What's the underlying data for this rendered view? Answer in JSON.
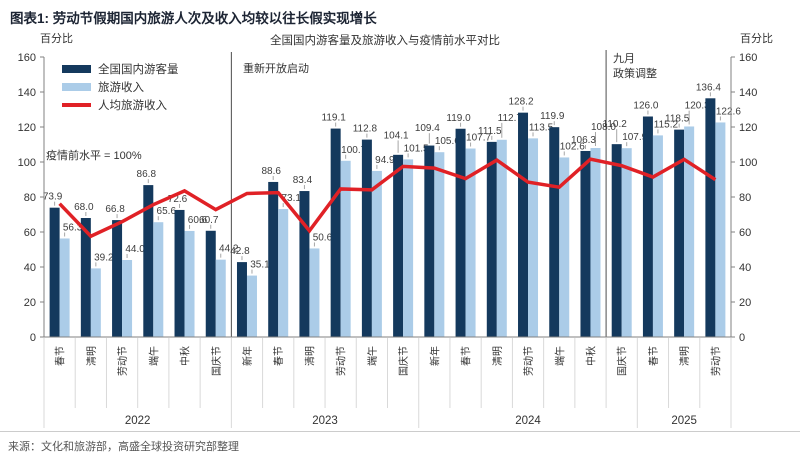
{
  "title": "图表1: 劳动节假期国内旅游人次及收入均较以往长假实现增长",
  "source": "来源：文化和旅游部，高盛全球投资研究部整理",
  "legend": [
    {
      "label": "全国国内游客量",
      "type": "bar",
      "color": "#14395d"
    },
    {
      "label": "旅游收入",
      "type": "bar",
      "color": "#abcce8"
    },
    {
      "label": "人均旅游收入",
      "type": "line",
      "color": "#e02126"
    }
  ],
  "annotations": {
    "baseline_note": "疫情前水平 = 100%",
    "reopening_note": "重新开放启动",
    "september_note_line1": "九月",
    "september_note_line2": "政策调整"
  },
  "colors": {
    "visitors": "#14395d",
    "income": "#abcce8",
    "line": "#e02126",
    "divider": "#4d4d4d",
    "axis": "#808080",
    "separator": "#d9d9d9",
    "leader": "#a6a6a6"
  },
  "chart_data": {
    "type": "bar+line",
    "title": "全国国内游客量及旅游收入与疫情前水平对比",
    "ylabel": "百分比",
    "ylim": [
      0,
      160
    ],
    "ytick_step": 20,
    "grid": false,
    "legend_position": "top-left",
    "categories": [
      "春节",
      "清明",
      "劳动节",
      "端午",
      "中秋",
      "国庆节",
      "新年",
      "春节",
      "清明",
      "劳动节",
      "端午",
      "国庆节",
      "新年",
      "春节",
      "清明",
      "劳动节",
      "端午",
      "中秋",
      "国庆节",
      "春节",
      "清明",
      "劳动节"
    ],
    "year_groups": [
      {
        "label": "2022",
        "count": 6
      },
      {
        "label": "2023",
        "count": 6
      },
      {
        "label": "2024",
        "count": 7
      },
      {
        "label": "2025",
        "count": 3
      }
    ],
    "series": [
      {
        "name": "全国国内游客量",
        "type": "bar",
        "color": "#14395d",
        "values": [
          73.9,
          68.0,
          66.8,
          86.8,
          72.6,
          60.7,
          42.8,
          88.6,
          83.4,
          119.1,
          112.8,
          104.1,
          109.4,
          119.0,
          111.5,
          128.2,
          119.9,
          106.3,
          110.2,
          126.0,
          118.5,
          136.4
        ]
      },
      {
        "name": "旅游收入",
        "type": "bar",
        "color": "#abcce8",
        "values": [
          56.3,
          39.2,
          44.0,
          65.6,
          60.6,
          44.2,
          35.1,
          73.1,
          50.6,
          100.7,
          94.9,
          101.5,
          105.6,
          107.7,
          112.7,
          113.5,
          102.6,
          108.0,
          107.9,
          115.2,
          120.3,
          122.6
        ]
      },
      {
        "name": "人均旅游收入",
        "type": "line",
        "color": "#e02126",
        "values": [
          76.2,
          57.6,
          65.9,
          75.6,
          83.5,
          72.8,
          82.0,
          82.5,
          60.7,
          84.6,
          84.1,
          97.5,
          96.5,
          90.5,
          101.1,
          88.5,
          85.6,
          101.6,
          97.9,
          91.4,
          101.5,
          89.9
        ]
      }
    ],
    "event_dividers": [
      {
        "after_index": 6,
        "note": "重新开放启动"
      },
      {
        "after_index": 18,
        "note": "九月政策调整"
      }
    ]
  }
}
